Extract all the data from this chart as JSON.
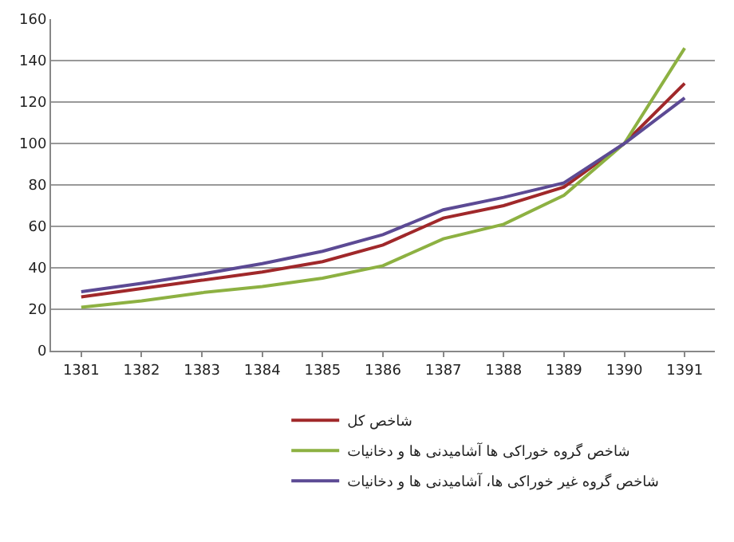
{
  "chart_data": {
    "type": "line",
    "categories": [
      "1381",
      "1382",
      "1383",
      "1384",
      "1385",
      "1386",
      "1387",
      "1388",
      "1389",
      "1390",
      "1391"
    ],
    "series": [
      {
        "name": "شاخص کل",
        "color": "#a0282a",
        "values": [
          26,
          30,
          34,
          38,
          43,
          51,
          64,
          70,
          79,
          100,
          129
        ]
      },
      {
        "name": "شاخص گروه خوراکی ها آشامیدنی ها و دخانیات",
        "color": "#8db142",
        "values": [
          21,
          24,
          28,
          31,
          35,
          41,
          54,
          61,
          75,
          100,
          146
        ]
      },
      {
        "name": "شاخص گروه غیر خوراکی ها، آشامیدنی ها و دخانیات",
        "color": "#5c4a94",
        "values": [
          28.5,
          32.5,
          37,
          42,
          48,
          56,
          68,
          74,
          81,
          100,
          122
        ]
      }
    ],
    "ylim": [
      0,
      160
    ],
    "yticks": [
      0,
      20,
      40,
      60,
      80,
      100,
      120,
      140,
      160
    ],
    "grid": "y",
    "legend": "bottom",
    "marker": "none",
    "line_style": "solid"
  }
}
